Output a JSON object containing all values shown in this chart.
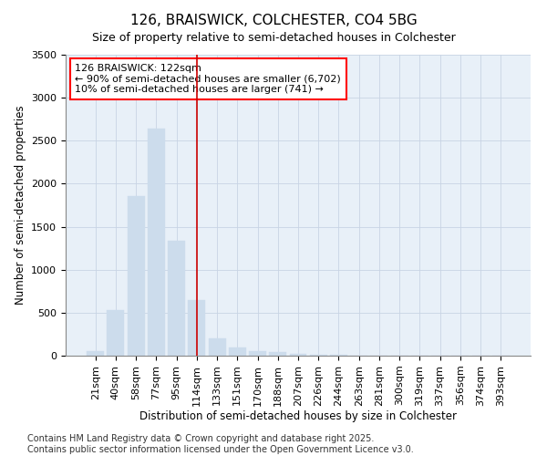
{
  "title": "126, BRAISWICK, COLCHESTER, CO4 5BG",
  "subtitle": "Size of property relative to semi-detached houses in Colchester",
  "xlabel": "Distribution of semi-detached houses by size in Colchester",
  "ylabel": "Number of semi-detached properties",
  "categories": [
    "21sqm",
    "40sqm",
    "58sqm",
    "77sqm",
    "95sqm",
    "114sqm",
    "133sqm",
    "151sqm",
    "170sqm",
    "188sqm",
    "207sqm",
    "226sqm",
    "244sqm",
    "263sqm",
    "281sqm",
    "300sqm",
    "319sqm",
    "337sqm",
    "356sqm",
    "374sqm",
    "393sqm"
  ],
  "values": [
    55,
    530,
    1855,
    2640,
    1335,
    645,
    205,
    100,
    55,
    40,
    25,
    15,
    10,
    5,
    3,
    2,
    1,
    1,
    1,
    1,
    1
  ],
  "bar_color": "#ccdcec",
  "bar_edge_color": "#ccdcec",
  "highlight_index": 5,
  "ylim": [
    0,
    3500
  ],
  "yticks": [
    0,
    500,
    1000,
    1500,
    2000,
    2500,
    3000,
    3500
  ],
  "vline_color": "#cc0000",
  "annotation_text": "126 BRAISWICK: 122sqm\n← 90% of semi-detached houses are smaller (6,702)\n10% of semi-detached houses are larger (741) →",
  "footnote": "Contains HM Land Registry data © Crown copyright and database right 2025.\nContains public sector information licensed under the Open Government Licence v3.0.",
  "bg_color": "#ffffff",
  "plot_bg_color": "#e8f0f8",
  "grid_color": "#c8d4e4",
  "title_fontsize": 11,
  "subtitle_fontsize": 9,
  "axis_label_fontsize": 8.5,
  "tick_fontsize": 8,
  "annot_fontsize": 8,
  "footnote_fontsize": 7
}
